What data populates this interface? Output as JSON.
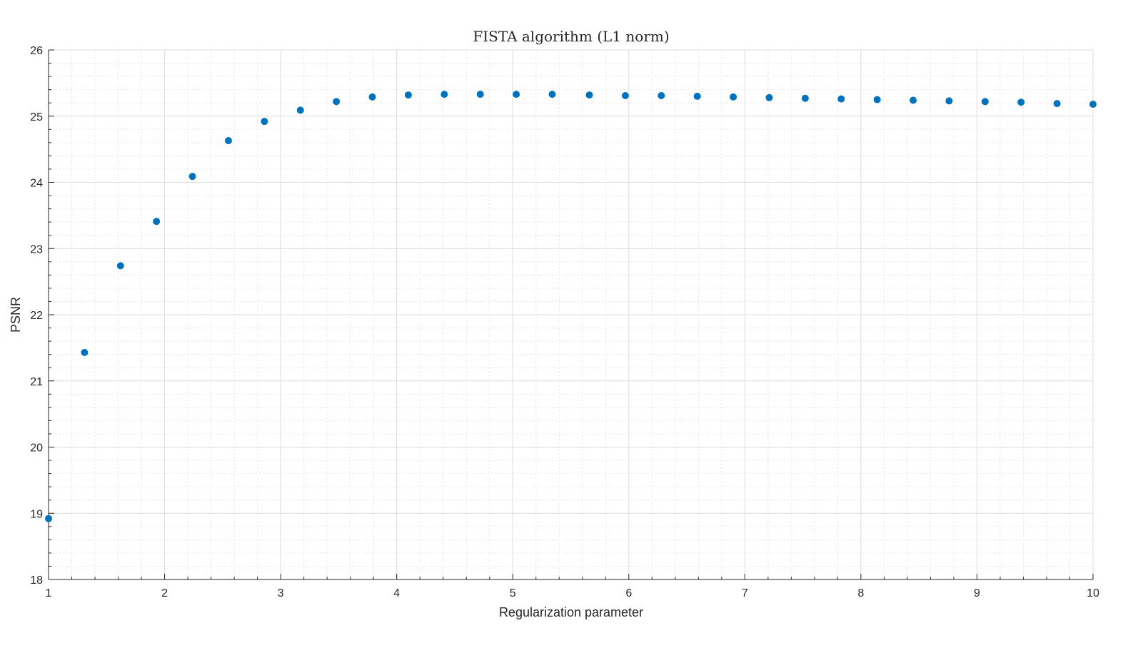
{
  "chart_data": {
    "type": "scatter",
    "title": "FISTA algorithm (L1 norm)",
    "xlabel": "Regularization parameter",
    "ylabel": "PSNR",
    "xlim": [
      1,
      10
    ],
    "ylim": [
      18,
      26
    ],
    "xticks": [
      1,
      2,
      3,
      4,
      5,
      6,
      7,
      8,
      9,
      10
    ],
    "yticks": [
      18,
      19,
      20,
      21,
      22,
      23,
      24,
      25,
      26
    ],
    "grid": true,
    "minor_grid": true,
    "marker_color": "#0072BD",
    "x": [
      1.0,
      1.31,
      1.62,
      1.93,
      2.24,
      2.55,
      2.86,
      3.17,
      3.48,
      3.79,
      4.1,
      4.41,
      4.72,
      5.03,
      5.34,
      5.66,
      5.97,
      6.28,
      6.59,
      6.9,
      7.21,
      7.52,
      7.83,
      8.14,
      8.45,
      8.76,
      9.07,
      9.38,
      9.69,
      10.0
    ],
    "y": [
      18.92,
      21.43,
      22.74,
      23.41,
      24.09,
      24.63,
      24.92,
      25.09,
      25.22,
      25.29,
      25.32,
      25.33,
      25.33,
      25.33,
      25.33,
      25.32,
      25.31,
      25.31,
      25.3,
      25.29,
      25.28,
      25.27,
      25.26,
      25.25,
      25.24,
      25.23,
      25.22,
      25.21,
      25.19,
      25.18
    ]
  }
}
